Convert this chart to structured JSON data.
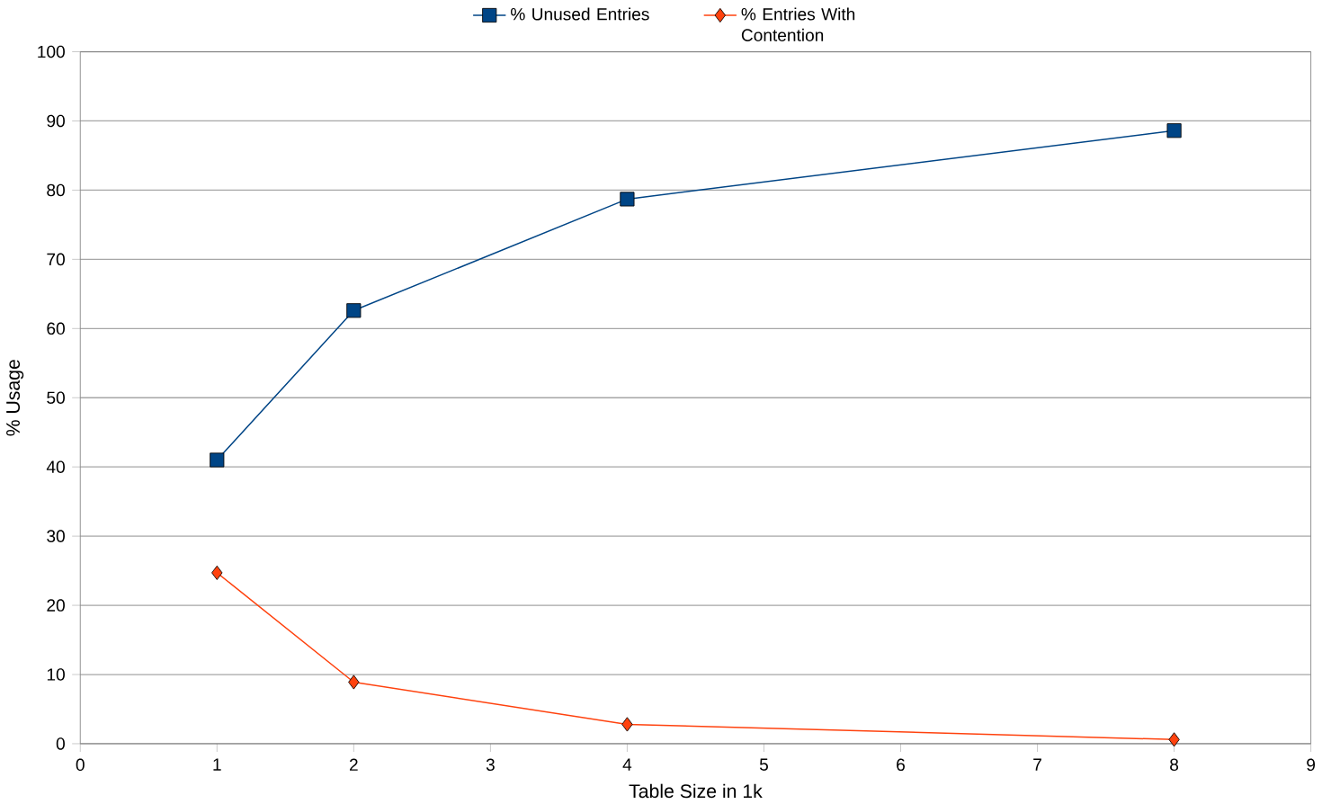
{
  "chart_data": {
    "type": "line",
    "xlabel": "Table Size in 1k",
    "ylabel": "% Usage",
    "x": [
      1,
      2,
      4,
      8
    ],
    "series": [
      {
        "name": "% Unused Entries",
        "color": "#004586",
        "marker": "square",
        "values": [
          41,
          62.6,
          78.7,
          88.6
        ]
      },
      {
        "name": "% Entries With Contention",
        "color": "#ff420e",
        "marker": "diamond",
        "values": [
          24.7,
          8.9,
          2.8,
          0.6
        ]
      }
    ],
    "xlim": [
      0,
      9
    ],
    "xticks": [
      0,
      1,
      2,
      3,
      4,
      5,
      6,
      7,
      8,
      9
    ],
    "ylim": [
      0,
      100
    ],
    "yticks": [
      0,
      10,
      20,
      30,
      40,
      50,
      60,
      70,
      80,
      90,
      100
    ],
    "grid": "y",
    "legend": "top"
  }
}
